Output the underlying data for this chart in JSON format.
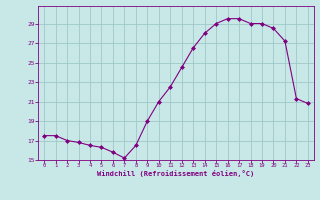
{
  "x": [
    0,
    1,
    2,
    3,
    4,
    5,
    6,
    7,
    8,
    9,
    10,
    11,
    12,
    13,
    14,
    15,
    16,
    17,
    18,
    19,
    20,
    21,
    22,
    23
  ],
  "y": [
    17.5,
    17.5,
    17.0,
    16.8,
    16.5,
    16.3,
    15.8,
    15.2,
    16.5,
    19.0,
    21.0,
    22.5,
    24.5,
    26.5,
    28.0,
    29.0,
    29.5,
    29.5,
    29.0,
    29.0,
    28.5,
    27.2,
    21.3,
    20.8
  ],
  "line_color": "#800080",
  "bg_color": "#c8e8e8",
  "grid_color": "#a0c8c8",
  "tick_color": "#800080",
  "label_color": "#800080",
  "xlabel": "Windchill (Refroidissement éolien,°C)",
  "ylim": [
    15,
    30
  ],
  "yticks": [
    15,
    17,
    19,
    21,
    23,
    25,
    27,
    29
  ],
  "xticks": [
    0,
    1,
    2,
    3,
    4,
    5,
    6,
    7,
    8,
    9,
    10,
    11,
    12,
    13,
    14,
    15,
    16,
    17,
    18,
    19,
    20,
    21,
    22,
    23
  ]
}
